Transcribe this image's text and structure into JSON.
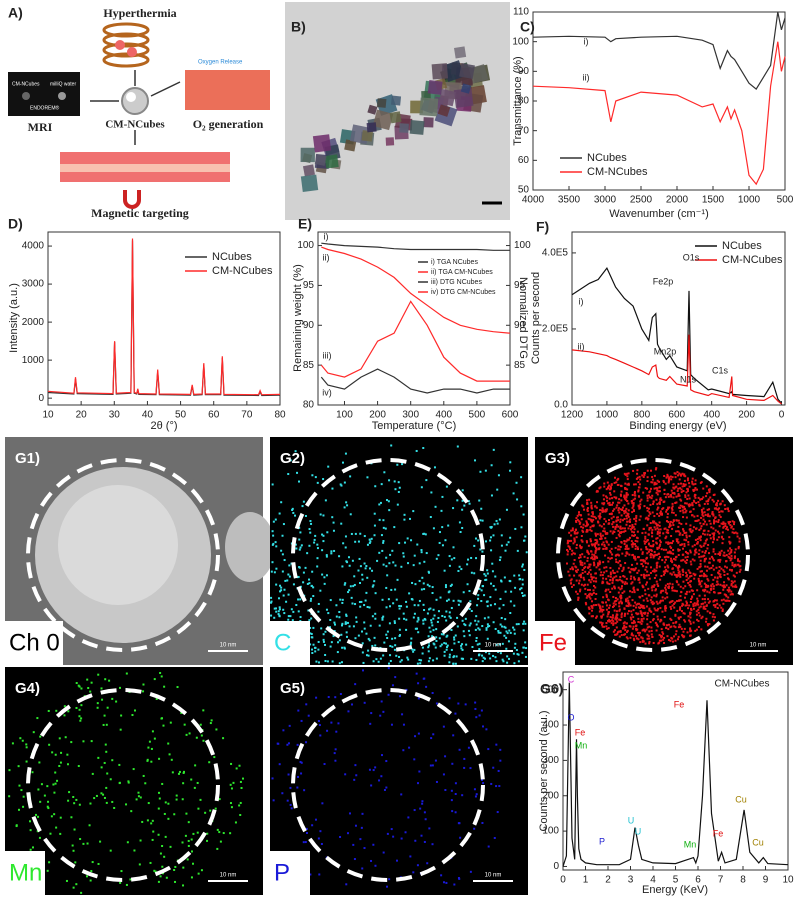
{
  "panel_a": {
    "label": "A)",
    "hyperthermia": "Hyperthermia",
    "mri": "MRI",
    "center": "CM-NCubes",
    "o2": "O₂ generation",
    "targeting": "Magnetic targeting",
    "vial_labels": [
      "CM-NCubes",
      "milliQ water",
      "ENDOREM®"
    ],
    "oxygen": "Oxygen Release"
  },
  "panel_b": {
    "label": "B)"
  },
  "maps": [
    {
      "label": "G1)",
      "element": "Ch 0",
      "color": "#000000",
      "scale": "10 nm"
    },
    {
      "label": "G2)",
      "element": "C",
      "color": "#33e0e6",
      "scale": "10 nm"
    },
    {
      "label": "G3)",
      "element": "Fe",
      "color": "#e8141c",
      "scale": "10 nm"
    },
    {
      "label": "G4)",
      "element": "Mn",
      "color": "#2ee82e",
      "scale": "10 nm"
    },
    {
      "label": "G5)",
      "element": "P",
      "color": "#1a1ad8",
      "scale": "10 nm"
    }
  ],
  "chart_data": [
    {
      "type": "line",
      "panel": "C)",
      "xlabel": "Wavenumber (cm⁻¹)",
      "ylabel": "Transmittance (%)",
      "x": [
        4000,
        3500,
        3000,
        2920,
        2850,
        2500,
        2000,
        1650,
        1500,
        1400,
        1300,
        1250,
        1200,
        1100,
        1000,
        900,
        800,
        700,
        600,
        550,
        500
      ],
      "series": [
        {
          "name": "NCubes",
          "color": "#333333",
          "values": [
            101.5,
            101.8,
            101.5,
            100,
            101,
            101.5,
            101.8,
            100.5,
            99,
            91,
            97,
            95,
            94,
            90,
            86,
            84,
            88,
            92,
            110,
            104,
            108
          ]
        },
        {
          "name": "CM-NCubes",
          "color": "#ff2a2a",
          "values": [
            85,
            84.5,
            83.5,
            73,
            80,
            83,
            82,
            78,
            79,
            73,
            78,
            74,
            77,
            70,
            55,
            52,
            57,
            85,
            100,
            90,
            95
          ]
        }
      ],
      "xlim": [
        4000,
        500
      ],
      "xticks": [
        4000,
        3500,
        3000,
        2500,
        2000,
        1500,
        1000,
        500
      ],
      "ylim": [
        50,
        110
      ],
      "yticks": [
        50,
        60,
        70,
        80,
        90,
        100,
        110
      ],
      "annotations": [
        {
          "text": "i)"
        },
        {
          "text": "ii)"
        }
      ]
    },
    {
      "type": "line",
      "panel": "D)",
      "xlabel": "2θ (°)",
      "ylabel": "Intensity (a.u.)",
      "x": [
        10,
        17.8,
        18.3,
        18.8,
        29.6,
        30.1,
        30.6,
        35,
        35.5,
        36,
        36.8,
        37.1,
        37.4,
        42.6,
        43.1,
        43.6,
        53,
        53.5,
        54,
        56.5,
        57,
        57.5,
        62.1,
        62.6,
        63.1,
        73.5,
        74,
        74.5,
        80
      ],
      "series": [
        {
          "name": "NCubes",
          "color": "#333333",
          "values": [
            150,
            110,
            500,
            120,
            100,
            1480,
            110,
            130,
            4150,
            130,
            110,
            220,
            100,
            90,
            700,
            90,
            80,
            320,
            80,
            90,
            880,
            90,
            90,
            1060,
            80,
            70,
            170,
            70,
            80
          ]
        },
        {
          "name": "CM-NCubes",
          "color": "#ff2a2a",
          "values": [
            180,
            130,
            550,
            140,
            120,
            1500,
            130,
            150,
            4200,
            150,
            130,
            250,
            120,
            110,
            750,
            110,
            100,
            350,
            100,
            110,
            920,
            110,
            110,
            1100,
            100,
            90,
            200,
            90,
            100
          ]
        }
      ],
      "xlim": [
        10,
        80
      ],
      "xticks": [
        10,
        20,
        30,
        40,
        50,
        60,
        70,
        80
      ],
      "ylim": [
        -180,
        4370
      ],
      "yticks": [
        0,
        1000,
        2000,
        3000,
        4000
      ],
      "annotations": []
    },
    {
      "type": "line",
      "panel": "E)",
      "xlabel": "Temperature (°C)",
      "ylabel": "Remaining weight (%)",
      "y2label": "Normalized DTG",
      "x": [
        30,
        50,
        100,
        150,
        200,
        250,
        300,
        350,
        400,
        450,
        500,
        550,
        600
      ],
      "series": [
        {
          "name": "i) TGA NCubes",
          "color": "#333333",
          "values": [
            100.3,
            100.2,
            100,
            99.9,
            99.8,
            99.6,
            99.5,
            99.5,
            99.5,
            99.5,
            99.5,
            99.4,
            99.4
          ]
        },
        {
          "name": "ii) TGA CM-NCubes",
          "color": "#ff2a2a",
          "values": [
            99.8,
            99.5,
            99,
            98.3,
            97.3,
            96,
            94,
            92.5,
            91,
            90,
            89.5,
            89.2,
            89
          ]
        },
        {
          "name": "iii) DTG NCubes",
          "color": "#333333",
          "axis": "y2",
          "values": [
            83.5,
            82.5,
            82,
            83.5,
            84.5,
            83.5,
            82,
            81.5,
            82,
            82,
            81.5,
            82,
            82
          ]
        },
        {
          "name": "iv) DTG CM-NCubes",
          "color": "#ff2a2a",
          "axis": "y2",
          "values": [
            85,
            84,
            83.5,
            84.5,
            88,
            89,
            93,
            90,
            86,
            84,
            83,
            83,
            83
          ]
        }
      ],
      "xlim": [
        20,
        600
      ],
      "xticks": [
        100,
        200,
        300,
        400,
        500,
        600
      ],
      "ylim": [
        80,
        101.7
      ],
      "yticks": [
        80,
        85,
        90,
        95,
        100
      ],
      "y2lim": [
        80,
        101.7
      ],
      "y2ticks": [
        85,
        90,
        95,
        100
      ],
      "annotations": [
        {
          "text": "i)"
        },
        {
          "text": "ii)"
        },
        {
          "text": "iii)"
        },
        {
          "text": "iv)"
        }
      ]
    },
    {
      "type": "line",
      "panel": "F)",
      "xlabel": "Binding energy (eV)",
      "ylabel": "Counts per second",
      "x": [
        1200,
        1100,
        1050,
        1000,
        980,
        950,
        900,
        850,
        800,
        760,
        740,
        720,
        710,
        700,
        660,
        640,
        600,
        540,
        530,
        520,
        500,
        420,
        400,
        300,
        285,
        280,
        200,
        100,
        50,
        20,
        0
      ],
      "series": [
        {
          "name": "NCubes",
          "color": "#111111",
          "values": [
            290000,
            320000,
            330000,
            360000,
            340000,
            310000,
            280000,
            260000,
            200000,
            170000,
            230000,
            240000,
            160000,
            150000,
            120000,
            130000,
            100000,
            90000,
            300000,
            80000,
            70000,
            40000,
            42000,
            30000,
            35000,
            28000,
            25000,
            22000,
            60000,
            15000,
            5000
          ]
        },
        {
          "name": "CM-NCubes",
          "color": "#ee1111",
          "values": [
            145000,
            140000,
            135000,
            130000,
            125000,
            120000,
            110000,
            100000,
            90000,
            80000,
            100000,
            105000,
            75000,
            70000,
            65000,
            75000,
            55000,
            50000,
            185000,
            40000,
            35000,
            25000,
            30000,
            20000,
            75000,
            25000,
            15000,
            12000,
            25000,
            10000,
            3000
          ]
        }
      ],
      "xlim": [
        1200,
        -20
      ],
      "xticks": [
        1200,
        1000,
        800,
        600,
        400,
        200,
        0
      ],
      "ylim": [
        0,
        455000
      ],
      "yticks": [
        {
          "value": 0,
          "label": "0.0"
        },
        {
          "value": 200000,
          "label": "2.0E5"
        },
        {
          "value": 400000,
          "label": "4.0E5"
        }
      ],
      "annotations": [
        {
          "text": "i)"
        },
        {
          "text": "ii)"
        },
        {
          "text": "Fe2p"
        },
        {
          "text": "O1s"
        },
        {
          "text": "Mn2p"
        },
        {
          "text": "N1s"
        },
        {
          "text": "C1s"
        }
      ]
    },
    {
      "type": "line",
      "panel": "G6)",
      "title": "CM-NCubes",
      "xlabel": "Energy (KeV)",
      "ylabel": "Counts per second (a.u.)",
      "x": [
        0,
        0.15,
        0.28,
        0.4,
        0.52,
        0.6,
        0.64,
        0.7,
        0.8,
        1,
        1.5,
        2,
        2.5,
        3,
        3.2,
        3.35,
        3.5,
        4,
        5,
        5.8,
        5.9,
        6,
        6.2,
        6.4,
        6.6,
        6.9,
        7.05,
        7.2,
        7.7,
        8.05,
        8.3,
        8.7,
        8.9,
        9.1,
        10
      ],
      "series": [
        {
          "name": "CM-NCubes",
          "color": "#111111",
          "values": [
            0,
            30,
            520,
            80,
            20,
            360,
            200,
            50,
            20,
            10,
            5,
            5,
            5,
            20,
            110,
            60,
            20,
            10,
            8,
            25,
            10,
            30,
            200,
            470,
            150,
            15,
            40,
            10,
            20,
            160,
            40,
            10,
            25,
            8,
            5
          ]
        }
      ],
      "legend": false,
      "xlim": [
        0,
        10
      ],
      "xticks": [
        0,
        1,
        2,
        3,
        4,
        5,
        6,
        7,
        8,
        9,
        10
      ],
      "ylim": [
        -10,
        550
      ],
      "yticks": [
        0,
        100,
        200,
        300,
        400,
        500
      ],
      "annotations": [
        {
          "text": "C",
          "color": "#d030d0"
        },
        {
          "text": "O",
          "color": "#2020d0"
        },
        {
          "text": "Fe",
          "color": "#e01010"
        },
        {
          "text": "Mn",
          "color": "#10b010"
        },
        {
          "text": "P",
          "color": "#2020d0"
        },
        {
          "text": "U",
          "color": "#20c0d0"
        },
        {
          "text": "U",
          "color": "#20c0d0"
        },
        {
          "text": "Mn",
          "color": "#10b010"
        },
        {
          "text": "Fe",
          "color": "#e01010"
        },
        {
          "text": "Fe",
          "color": "#e01010"
        },
        {
          "text": "Cu",
          "color": "#a08000"
        },
        {
          "text": "Cu",
          "color": "#a08000"
        }
      ]
    }
  ]
}
